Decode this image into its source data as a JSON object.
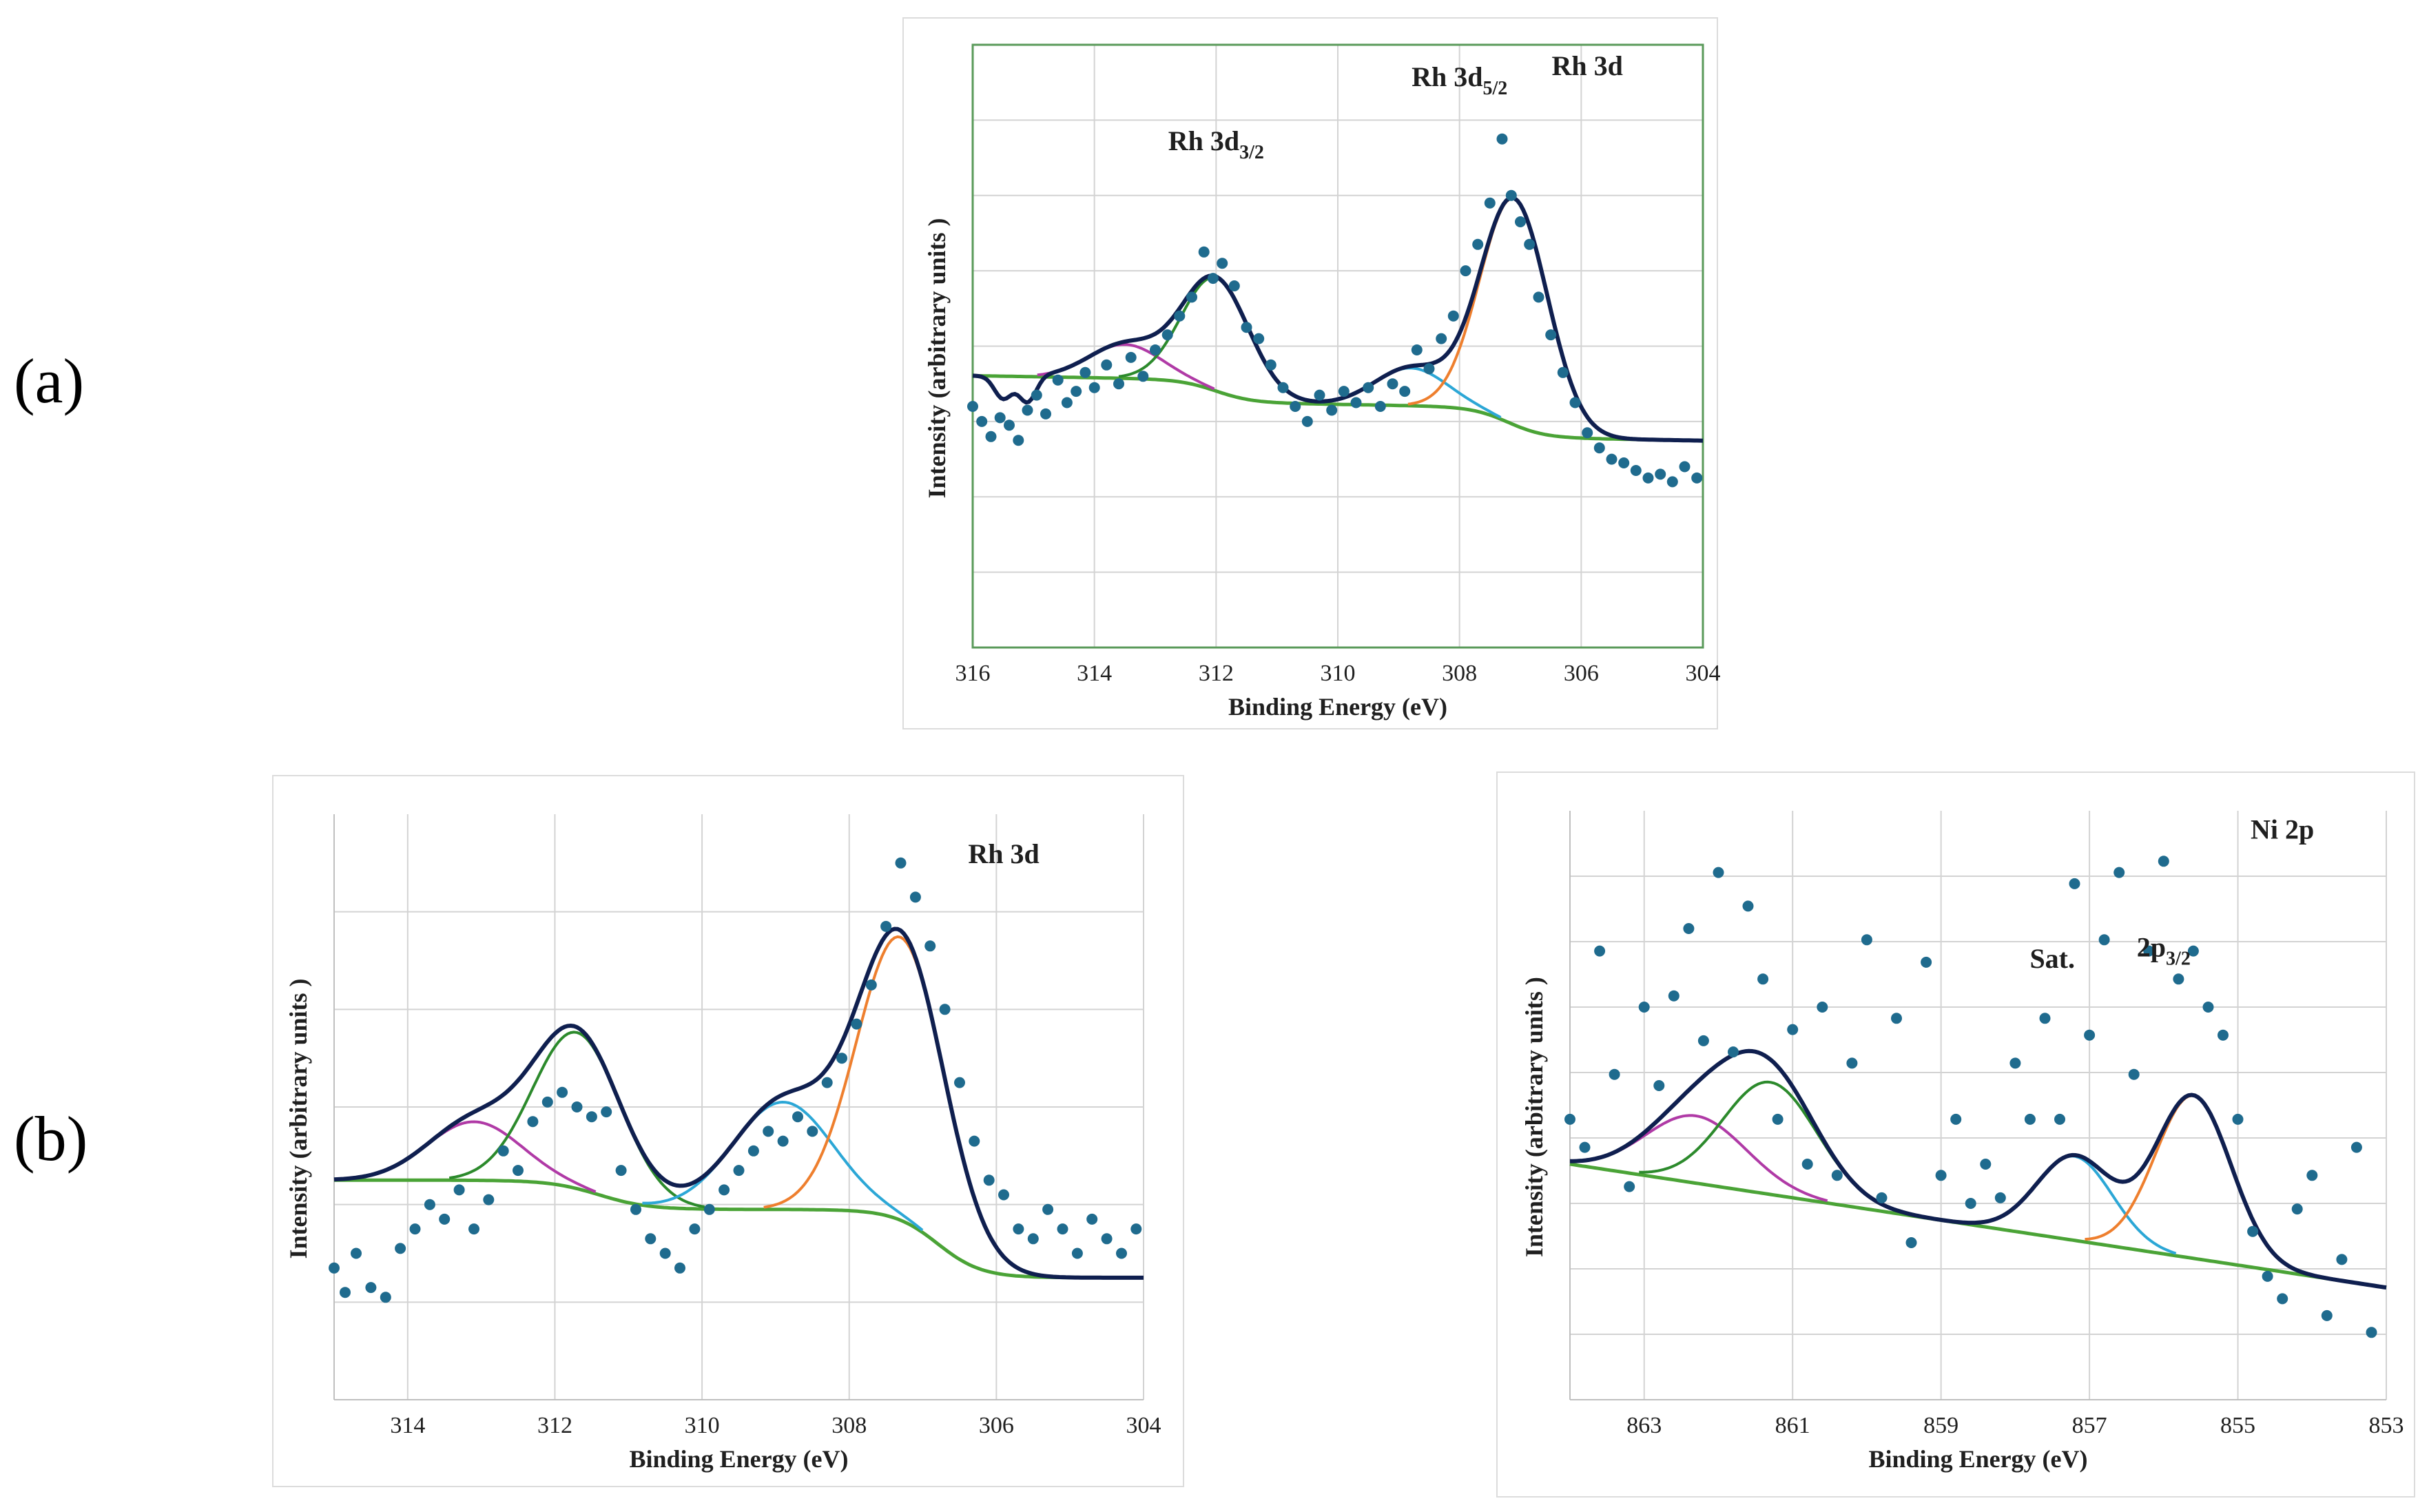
{
  "figure": {
    "panel_labels": {
      "a": "(a)",
      "b": "(b)"
    }
  },
  "colors": {
    "fit": "#0f1f4f",
    "background": "#4aa336",
    "c1": "#b03aa6",
    "c2": "#2c8a2c",
    "c3": "#2ca7d6",
    "c4": "#ee7f2e",
    "points": "#1f6b8e",
    "grid": "#d3d3d3",
    "frame_a": "#5a9a5a"
  },
  "chart_data": [
    {
      "id": "a",
      "type": "scatter",
      "title": "Rh 3d",
      "xlabel": "Binding Energy  (eV)",
      "ylabel": "Intensity  (arbitrary units  )",
      "xlim": [
        316,
        304
      ],
      "ylim": [
        -0.55,
        1.05
      ],
      "xticks": [
        316,
        314,
        312,
        310,
        308,
        306,
        304
      ],
      "grid": true,
      "annotations": [
        {
          "main": "Rh 3d",
          "sub": "3/2",
          "x": 312.0,
          "y": 0.77
        },
        {
          "main": "Rh 3d",
          "sub": "5/2",
          "x": 308.0,
          "y": 0.94
        },
        {
          "main": "Rh 3d",
          "sub": "",
          "x": 305.9,
          "y": 0.97
        }
      ],
      "background": {
        "start": 304.0,
        "end": 316.0,
        "steps": [
          {
            "center": 307.2,
            "width": 0.9,
            "height": 0.08
          },
          {
            "center": 312.0,
            "width": 0.9,
            "height": 0.06
          }
        ],
        "base_low": 0.0,
        "slope": 0.0027,
        "low_end": 304.3
      },
      "components": [
        {
          "name": "Rh 3d3/2 minor",
          "color_key": "c1",
          "center": 313.5,
          "fwhm": 1.4,
          "height": 0.09
        },
        {
          "name": "Rh 3d3/2",
          "color_key": "c2",
          "center": 312.0,
          "fwhm": 1.3,
          "height": 0.3
        },
        {
          "name": "Rh 3d5/2 minor",
          "color_key": "c3",
          "center": 308.8,
          "fwhm": 1.4,
          "height": 0.1
        },
        {
          "name": "Rh 3d5/2",
          "color_key": "c4",
          "center": 307.1,
          "fwhm": 1.3,
          "height": 0.6
        }
      ],
      "points_x": [
        316.0,
        315.85,
        315.7,
        315.55,
        315.4,
        315.25,
        315.1,
        314.95,
        314.8,
        314.6,
        314.45,
        314.3,
        314.15,
        314.0,
        313.8,
        313.6,
        313.4,
        313.2,
        313.0,
        312.8,
        312.6,
        312.4,
        312.2,
        312.05,
        311.9,
        311.7,
        311.5,
        311.3,
        311.1,
        310.9,
        310.7,
        310.5,
        310.3,
        310.1,
        309.9,
        309.7,
        309.5,
        309.3,
        309.1,
        308.9,
        308.7,
        308.5,
        308.3,
        308.1,
        307.9,
        307.7,
        307.5,
        307.3,
        307.15,
        307.0,
        306.85,
        306.7,
        306.5,
        306.3,
        306.1,
        305.9,
        305.7,
        305.5,
        305.3,
        305.1,
        304.9,
        304.7,
        304.5,
        304.3,
        304.1
      ],
      "points_y": [
        0.09,
        0.05,
        0.01,
        0.06,
        0.04,
        0.0,
        0.08,
        0.12,
        0.07,
        0.16,
        0.1,
        0.13,
        0.18,
        0.14,
        0.2,
        0.15,
        0.22,
        0.17,
        0.24,
        0.28,
        0.33,
        0.38,
        0.5,
        0.43,
        0.47,
        0.41,
        0.3,
        0.27,
        0.2,
        0.14,
        0.09,
        0.05,
        0.12,
        0.08,
        0.13,
        0.1,
        0.14,
        0.09,
        0.15,
        0.13,
        0.24,
        0.19,
        0.27,
        0.33,
        0.45,
        0.52,
        0.63,
        0.8,
        0.65,
        0.58,
        0.52,
        0.38,
        0.28,
        0.18,
        0.1,
        0.02,
        -0.02,
        -0.05,
        -0.06,
        -0.08,
        -0.1,
        -0.09,
        -0.11,
        -0.07,
        -0.1
      ],
      "fit_dips": [
        {
          "x": 315.5,
          "depth": 0.06
        },
        {
          "x": 315.1,
          "depth": 0.07
        }
      ]
    },
    {
      "id": "b-rh",
      "type": "scatter",
      "title": "Rh 3d",
      "xlabel": "Binding Energy  (eV)",
      "ylabel": "Intensity  (arbitrary units  )",
      "xlim": [
        315,
        304
      ],
      "ylim": [
        -0.25,
        0.95
      ],
      "xticks": [
        314,
        312,
        310,
        308,
        306,
        304
      ],
      "grid": true,
      "annotations": [
        {
          "main": "Rh 3d",
          "sub": "",
          "x": 305.9,
          "y": 0.85
        }
      ],
      "background": {
        "start": 304.0,
        "end": 315.0,
        "steps": [
          {
            "center": 306.8,
            "width": 0.9,
            "height": 0.14
          },
          {
            "center": 311.4,
            "width": 1.0,
            "height": 0.06
          }
        ],
        "base_low": 0.0,
        "slope": 0.0,
        "low_end": 304.2
      },
      "components": [
        {
          "name": "Rh 3d3/2 minor",
          "color_key": "c1",
          "center": 313.1,
          "fwhm": 1.5,
          "height": 0.12
        },
        {
          "name": "Rh 3d3/2",
          "color_key": "c2",
          "center": 311.7,
          "fwhm": 1.4,
          "height": 0.32
        },
        {
          "name": "Rh 3d5/2 minor",
          "color_key": "c3",
          "center": 308.9,
          "fwhm": 1.6,
          "height": 0.22
        },
        {
          "name": "Rh 3d5/2",
          "color_key": "c4",
          "center": 307.3,
          "fwhm": 1.4,
          "height": 0.58
        }
      ],
      "points_x": [
        315.0,
        314.85,
        314.7,
        314.5,
        314.3,
        314.1,
        313.9,
        313.7,
        313.5,
        313.3,
        313.1,
        312.9,
        312.7,
        312.5,
        312.3,
        312.1,
        311.9,
        311.7,
        311.5,
        311.3,
        311.1,
        310.9,
        310.7,
        310.5,
        310.3,
        310.1,
        309.9,
        309.7,
        309.5,
        309.3,
        309.1,
        308.9,
        308.7,
        308.5,
        308.3,
        308.1,
        307.9,
        307.7,
        307.5,
        307.3,
        307.1,
        306.9,
        306.7,
        306.5,
        306.3,
        306.1,
        305.9,
        305.7,
        305.5,
        305.3,
        305.1,
        304.9,
        304.7,
        304.5,
        304.3,
        304.1
      ],
      "points_y": [
        0.02,
        -0.03,
        0.05,
        -0.02,
        -0.04,
        0.06,
        0.1,
        0.15,
        0.12,
        0.18,
        0.1,
        0.16,
        0.26,
        0.22,
        0.32,
        0.36,
        0.38,
        0.35,
        0.33,
        0.34,
        0.22,
        0.14,
        0.08,
        0.05,
        0.02,
        0.1,
        0.14,
        0.18,
        0.22,
        0.26,
        0.3,
        0.28,
        0.33,
        0.3,
        0.4,
        0.45,
        0.52,
        0.6,
        0.72,
        0.85,
        0.78,
        0.68,
        0.55,
        0.4,
        0.28,
        0.2,
        0.17,
        0.1,
        0.08,
        0.14,
        0.1,
        0.05,
        0.12,
        0.08,
        0.05,
        0.1
      ],
      "fit_dips": []
    },
    {
      "id": "b-ni",
      "type": "scatter",
      "title": "Ni 2p",
      "xlabel": "Binding Energy  (eV)",
      "ylabel": "Intensity  (arbitrary units  )",
      "xlim": [
        864,
        853
      ],
      "ylim": [
        -0.2,
        0.85
      ],
      "xticks": [
        863,
        861,
        859,
        857,
        855,
        853
      ],
      "grid": true,
      "annotations": [
        {
          "main": "Sat.",
          "sub": "",
          "x": 857.5,
          "y": 0.57
        },
        {
          "main": "2p",
          "sub": "3/2",
          "x": 856.0,
          "y": 0.59
        },
        {
          "main": "Ni 2p",
          "sub": "",
          "x": 854.4,
          "y": 0.8
        }
      ],
      "background": {
        "start": 853.0,
        "end": 864.0,
        "steps": [],
        "base_low": 0.0,
        "slope": 0.02,
        "low_end": 853.0
      },
      "components": [
        {
          "name": "Sat. minor",
          "color_key": "c1",
          "center": 862.3,
          "fwhm": 1.6,
          "height": 0.12
        },
        {
          "name": "Sat. main",
          "color_key": "c2",
          "center": 861.3,
          "fwhm": 1.5,
          "height": 0.2
        },
        {
          "name": "2p3/2 sat",
          "color_key": "c3",
          "center": 857.2,
          "fwhm": 1.2,
          "height": 0.15
        },
        {
          "name": "2p3/2",
          "color_key": "c4",
          "center": 855.6,
          "fwhm": 1.2,
          "height": 0.29
        }
      ],
      "points_x": [
        864.0,
        863.8,
        863.6,
        863.4,
        863.2,
        863.0,
        862.8,
        862.6,
        862.4,
        862.2,
        862.0,
        861.8,
        861.6,
        861.4,
        861.2,
        861.0,
        860.8,
        860.6,
        860.4,
        860.2,
        860.0,
        859.8,
        859.6,
        859.4,
        859.2,
        859.0,
        858.8,
        858.6,
        858.4,
        858.2,
        858.0,
        857.8,
        857.6,
        857.4,
        857.2,
        857.0,
        856.8,
        856.6,
        856.4,
        856.2,
        856.0,
        855.8,
        855.6,
        855.4,
        855.2,
        855.0,
        854.8,
        854.6,
        854.4,
        854.2,
        854.0,
        853.8,
        853.6,
        853.4,
        853.2
      ],
      "points_y": [
        0.3,
        0.25,
        0.6,
        0.38,
        0.18,
        0.5,
        0.36,
        0.52,
        0.64,
        0.44,
        0.74,
        0.42,
        0.68,
        0.55,
        0.3,
        0.46,
        0.22,
        0.5,
        0.2,
        0.4,
        0.62,
        0.16,
        0.48,
        0.08,
        0.58,
        0.2,
        0.3,
        0.15,
        0.22,
        0.16,
        0.4,
        0.3,
        0.48,
        0.3,
        0.72,
        0.45,
        0.62,
        0.74,
        0.38,
        0.6,
        0.76,
        0.55,
        0.6,
        0.5,
        0.45,
        0.3,
        0.1,
        0.02,
        -0.02,
        0.14,
        0.2,
        -0.05,
        0.05,
        0.25,
        -0.08
      ],
      "fit_dips": []
    }
  ]
}
